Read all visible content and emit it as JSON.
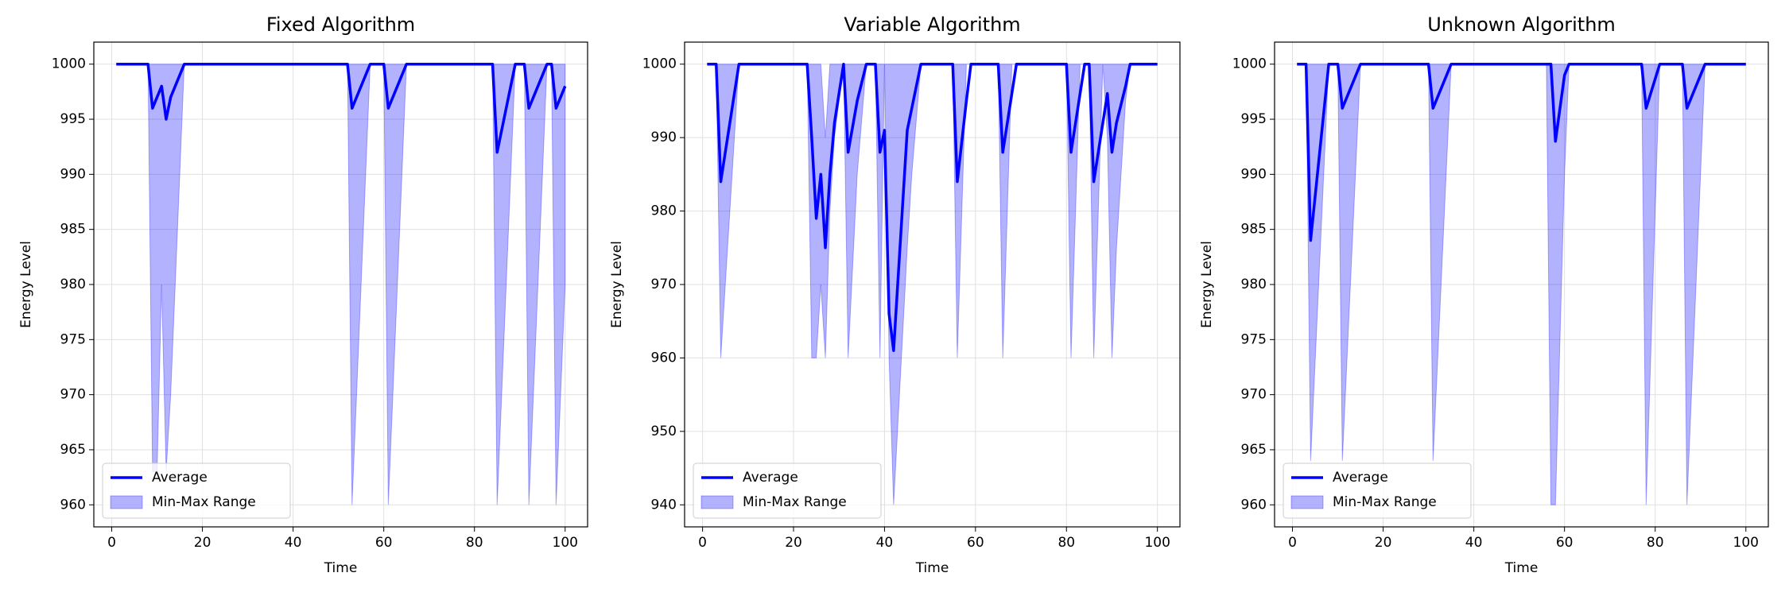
{
  "chart_data": [
    {
      "type": "line",
      "title": "Fixed Algorithm",
      "xlabel": "Time",
      "ylabel": "Energy Level",
      "x": [
        1,
        8,
        9,
        10,
        11,
        12,
        13,
        16,
        52,
        53,
        57,
        60,
        61,
        65,
        84,
        85,
        89,
        91,
        92,
        96,
        97,
        98,
        100
      ],
      "series": [
        {
          "name": "Average",
          "color": "#0000ff",
          "values": [
            1000,
            1000,
            996,
            997,
            998,
            995,
            997,
            1000,
            1000,
            996,
            1000,
            1000,
            996,
            1000,
            1000,
            992,
            1000,
            1000,
            996,
            1000,
            1000,
            996,
            998
          ]
        },
        {
          "name": "Min-Max Range",
          "color": "#0000ff",
          "fill_opacity": 0.3,
          "lower": [
            1000,
            1000,
            963,
            963,
            980,
            963,
            970,
            1000,
            1000,
            960,
            1000,
            1000,
            960,
            1000,
            1000,
            960,
            1000,
            1000,
            960,
            1000,
            1000,
            960,
            980
          ],
          "upper": [
            1000,
            1000,
            1000,
            1000,
            1000,
            1000,
            1000,
            1000,
            1000,
            1000,
            1000,
            1000,
            1000,
            1000,
            1000,
            1000,
            1000,
            1000,
            1000,
            1000,
            1000,
            1000,
            1000
          ]
        }
      ],
      "xlim": [
        -3.95,
        104.95
      ],
      "xticks": [
        0,
        20,
        40,
        60,
        80,
        100
      ],
      "ylim": [
        958,
        1002
      ],
      "yticks": [
        960,
        965,
        970,
        975,
        980,
        985,
        990,
        995,
        1000
      ],
      "grid": true,
      "legend": "lower left"
    },
    {
      "type": "line",
      "title": "Variable Algorithm",
      "xlabel": "Time",
      "ylabel": "Energy Level",
      "x": [
        1,
        3,
        4,
        8,
        23,
        24,
        25,
        26,
        27,
        28,
        29,
        31,
        32,
        34,
        36,
        38,
        39,
        40,
        41,
        42,
        45,
        46,
        48,
        55,
        56,
        58,
        59,
        65,
        66,
        68,
        69,
        80,
        81,
        83,
        84,
        85,
        86,
        88,
        89,
        90,
        91,
        93,
        94,
        100
      ],
      "series": [
        {
          "name": "Average",
          "color": "#0000ff",
          "values": [
            1000,
            1000,
            984,
            1000,
            1000,
            990,
            979,
            985,
            975,
            985,
            992,
            1000,
            988,
            995,
            1000,
            1000,
            988,
            991,
            966,
            961,
            991,
            994,
            1000,
            1000,
            984,
            995,
            1000,
            1000,
            988,
            996,
            1000,
            1000,
            988,
            996,
            1000,
            1000,
            984,
            992,
            996,
            988,
            992,
            997,
            1000,
            1000
          ]
        },
        {
          "name": "Min-Max Range",
          "color": "#0000ff",
          "fill_opacity": 0.3,
          "lower": [
            1000,
            1000,
            960,
            1000,
            1000,
            960,
            960,
            970,
            960,
            980,
            990,
            1000,
            960,
            985,
            1000,
            1000,
            960,
            1000,
            960,
            940,
            975,
            985,
            1000,
            1000,
            960,
            1000,
            1000,
            1000,
            960,
            1000,
            1000,
            1000,
            960,
            1000,
            1000,
            1000,
            960,
            1000,
            990,
            960,
            975,
            995,
            1000,
            1000
          ],
          "upper": [
            1000,
            1000,
            1000,
            1000,
            1000,
            1000,
            1000,
            1000,
            990,
            1000,
            1000,
            1000,
            1000,
            1000,
            1000,
            1000,
            1000,
            1000,
            1000,
            1000,
            1000,
            1000,
            1000,
            1000,
            1000,
            1000,
            1000,
            1000,
            1000,
            1000,
            1000,
            1000,
            1000,
            1000,
            1000,
            1000,
            1000,
            1000,
            1000,
            1000,
            1000,
            1000,
            1000,
            1000
          ]
        }
      ],
      "xlim": [
        -3.95,
        104.95
      ],
      "xticks": [
        0,
        20,
        40,
        60,
        80,
        100
      ],
      "ylim": [
        937,
        1003
      ],
      "yticks": [
        940,
        950,
        960,
        970,
        980,
        990,
        1000
      ],
      "grid": true,
      "legend": "lower left"
    },
    {
      "type": "line",
      "title": "Unknown Algorithm",
      "xlabel": "Time",
      "ylabel": "Energy Level",
      "x": [
        1,
        3,
        4,
        8,
        10,
        11,
        15,
        30,
        31,
        35,
        56,
        57,
        58,
        60,
        61,
        77,
        78,
        81,
        86,
        87,
        91,
        100
      ],
      "series": [
        {
          "name": "Average",
          "color": "#0000ff",
          "values": [
            1000,
            1000,
            984,
            1000,
            1000,
            996,
            1000,
            1000,
            996,
            1000,
            1000,
            1000,
            993,
            999,
            1000,
            1000,
            996,
            1000,
            1000,
            996,
            1000,
            1000
          ]
        },
        {
          "name": "Min-Max Range",
          "color": "#0000ff",
          "fill_opacity": 0.3,
          "lower": [
            1000,
            1000,
            964,
            1000,
            1000,
            964,
            1000,
            1000,
            964,
            1000,
            1000,
            960,
            960,
            990,
            1000,
            1000,
            960,
            1000,
            1000,
            960,
            1000,
            1000
          ],
          "upper": [
            1000,
            1000,
            1000,
            1000,
            1000,
            1000,
            1000,
            1000,
            1000,
            1000,
            1000,
            1000,
            1000,
            1000,
            1000,
            1000,
            1000,
            1000,
            1000,
            1000,
            1000,
            1000
          ]
        }
      ],
      "xlim": [
        -3.95,
        104.95
      ],
      "xticks": [
        0,
        20,
        40,
        60,
        80,
        100
      ],
      "ylim": [
        958,
        1002
      ],
      "yticks": [
        960,
        965,
        970,
        975,
        980,
        985,
        990,
        995,
        1000
      ],
      "grid": true,
      "legend": "lower left"
    }
  ]
}
